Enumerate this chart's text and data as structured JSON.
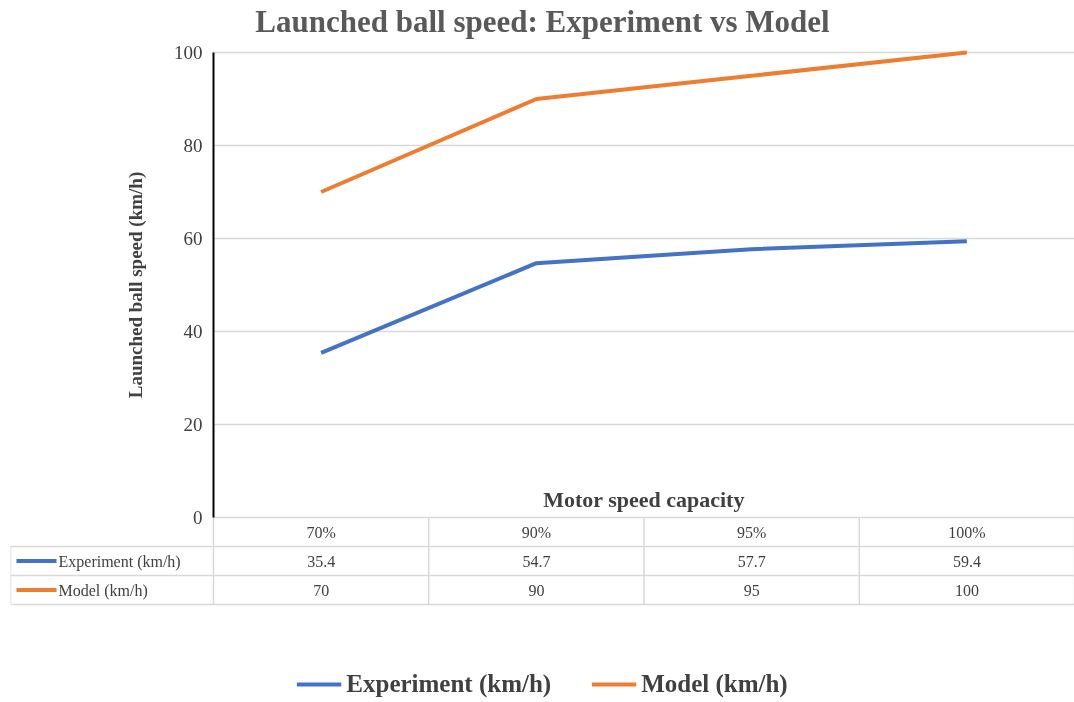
{
  "chart_data": {
    "type": "line",
    "title": "Launched ball speed: Experiment vs Model",
    "xlabel": "Motor speed capacity",
    "ylabel": "Launched ball speed (km/h)",
    "categories": [
      "70%",
      "90%",
      "95%",
      "100%"
    ],
    "series": [
      {
        "name": "Experiment (km/h)",
        "color": "#4472c4",
        "values": [
          35.4,
          54.7,
          57.7,
          59.4
        ]
      },
      {
        "name": "Model (km/h)",
        "color": "#ed7d31",
        "values": [
          70,
          90,
          95,
          100
        ]
      }
    ],
    "ylim": [
      0,
      100
    ],
    "yticks": [
      0,
      20,
      40,
      60,
      80,
      100
    ],
    "grid": "y",
    "legend": "bottom",
    "data_labels": true,
    "marker": "none",
    "line_style": "solid"
  }
}
